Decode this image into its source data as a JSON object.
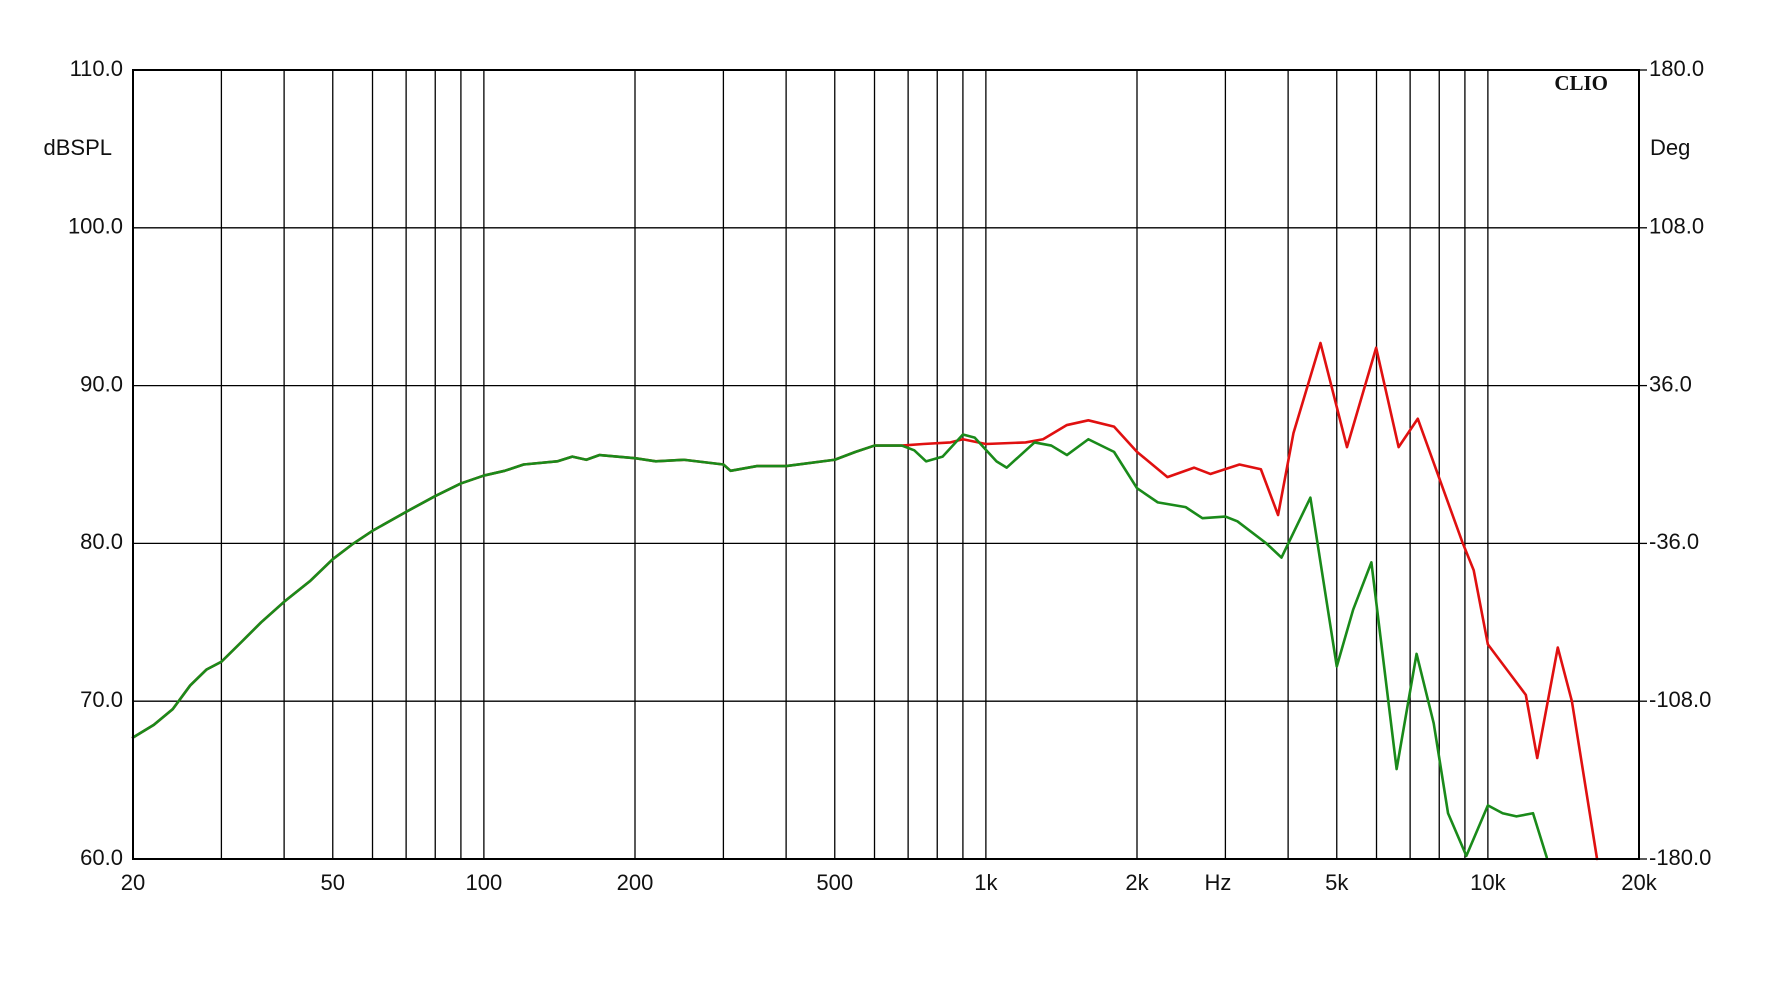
{
  "chart_data": {
    "type": "line",
    "brand": "CLIO",
    "ylabel": "dBSPL",
    "y2label": "Deg",
    "xlabel": "Hz",
    "xscale": "log",
    "grid": true,
    "xlim": [
      20,
      20000
    ],
    "xticks": [
      {
        "value": 20,
        "label": "20"
      },
      {
        "value": 50,
        "label": "50"
      },
      {
        "value": 100,
        "label": "100"
      },
      {
        "value": 200,
        "label": "200"
      },
      {
        "value": 500,
        "label": "500"
      },
      {
        "value": 1000,
        "label": "1k"
      },
      {
        "value": 2000,
        "label": "2k"
      },
      {
        "value": 5000,
        "label": "5k"
      },
      {
        "value": 10000,
        "label": "10k"
      },
      {
        "value": 20000,
        "label": "20k"
      }
    ],
    "xgrid": [
      30,
      40,
      60,
      70,
      80,
      90,
      300,
      400,
      600,
      700,
      800,
      900,
      3000,
      4000,
      6000,
      7000,
      8000,
      9000
    ],
    "ylim": [
      60,
      110
    ],
    "yticks": [
      {
        "value": 60,
        "label": "60.0"
      },
      {
        "value": 70,
        "label": "70.0"
      },
      {
        "value": 80,
        "label": "80.0"
      },
      {
        "value": 90,
        "label": "90.0"
      },
      {
        "value": 100,
        "label": "100.0"
      },
      {
        "value": 110,
        "label": "110.0"
      }
    ],
    "y2lim": [
      -180,
      180
    ],
    "y2ticks": [
      {
        "value": -180,
        "label": "-180.0"
      },
      {
        "value": -108,
        "label": "-108.0"
      },
      {
        "value": -36,
        "label": "-36.0"
      },
      {
        "value": 36,
        "label": "36.0"
      },
      {
        "value": 108,
        "label": "108.0"
      },
      {
        "value": 180,
        "label": "180.0"
      }
    ],
    "series": [
      {
        "color": "#e01010",
        "x": [
          20,
          22,
          24,
          26,
          28,
          30,
          33,
          36,
          40,
          45,
          50,
          55,
          60,
          70,
          80,
          90,
          100,
          110,
          120,
          140,
          150,
          160,
          170,
          200,
          220,
          250,
          300,
          310,
          350,
          400,
          500,
          550,
          600,
          680,
          750,
          850,
          900,
          1000,
          1200,
          1300,
          1450,
          1600,
          1800,
          2000,
          2300,
          2600,
          2800,
          3200,
          3530,
          3820,
          4100,
          4640,
          5240,
          5990,
          6640,
          7250,
          8890,
          9370,
          10000,
          11900,
          12540,
          13780,
          14700,
          16500
        ],
        "values": [
          67.7,
          68.5,
          69.5,
          71.0,
          72.0,
          72.5,
          73.8,
          75.0,
          76.3,
          77.6,
          79.0,
          80.0,
          80.8,
          82.0,
          83.0,
          83.8,
          84.3,
          84.6,
          85.0,
          85.2,
          85.5,
          85.3,
          85.6,
          85.4,
          85.2,
          85.3,
          85.0,
          84.6,
          84.9,
          84.9,
          85.3,
          85.8,
          86.2,
          86.2,
          86.3,
          86.4,
          86.6,
          86.3,
          86.4,
          86.6,
          87.5,
          87.8,
          87.4,
          85.8,
          84.2,
          84.8,
          84.4,
          85.0,
          84.7,
          81.8,
          87.0,
          92.7,
          86.1,
          92.4,
          86.1,
          87.9,
          80.1,
          78.3,
          73.6,
          70.4,
          66.4,
          73.4,
          70.0,
          60.0
        ]
      },
      {
        "color": "#1a8a1a",
        "x": [
          20,
          22,
          24,
          26,
          28,
          30,
          33,
          36,
          40,
          45,
          50,
          55,
          60,
          70,
          80,
          90,
          100,
          110,
          120,
          140,
          150,
          160,
          170,
          200,
          220,
          250,
          300,
          310,
          350,
          400,
          500,
          550,
          600,
          680,
          720,
          760,
          820,
          900,
          950,
          1050,
          1100,
          1250,
          1350,
          1450,
          1600,
          1800,
          2000,
          2200,
          2500,
          2700,
          3000,
          3170,
          3620,
          3880,
          4430,
          5000,
          5390,
          5860,
          6580,
          7210,
          7800,
          8330,
          9060,
          10000,
          10700,
          11400,
          12300,
          13100
        ],
        "values": [
          67.7,
          68.5,
          69.5,
          71.0,
          72.0,
          72.5,
          73.8,
          75.0,
          76.3,
          77.6,
          79.0,
          80.0,
          80.8,
          82.0,
          83.0,
          83.8,
          84.3,
          84.6,
          85.0,
          85.2,
          85.5,
          85.3,
          85.6,
          85.4,
          85.2,
          85.3,
          85.0,
          84.6,
          84.9,
          84.9,
          85.3,
          85.8,
          86.2,
          86.2,
          85.9,
          85.2,
          85.5,
          86.9,
          86.7,
          85.2,
          84.8,
          86.4,
          86.2,
          85.6,
          86.6,
          85.8,
          83.5,
          82.6,
          82.3,
          81.6,
          81.7,
          81.4,
          80.0,
          79.1,
          82.9,
          72.2,
          75.8,
          78.8,
          65.7,
          73.0,
          68.6,
          62.9,
          60.2,
          63.4,
          62.9,
          62.7,
          62.9,
          60.1
        ]
      }
    ]
  }
}
